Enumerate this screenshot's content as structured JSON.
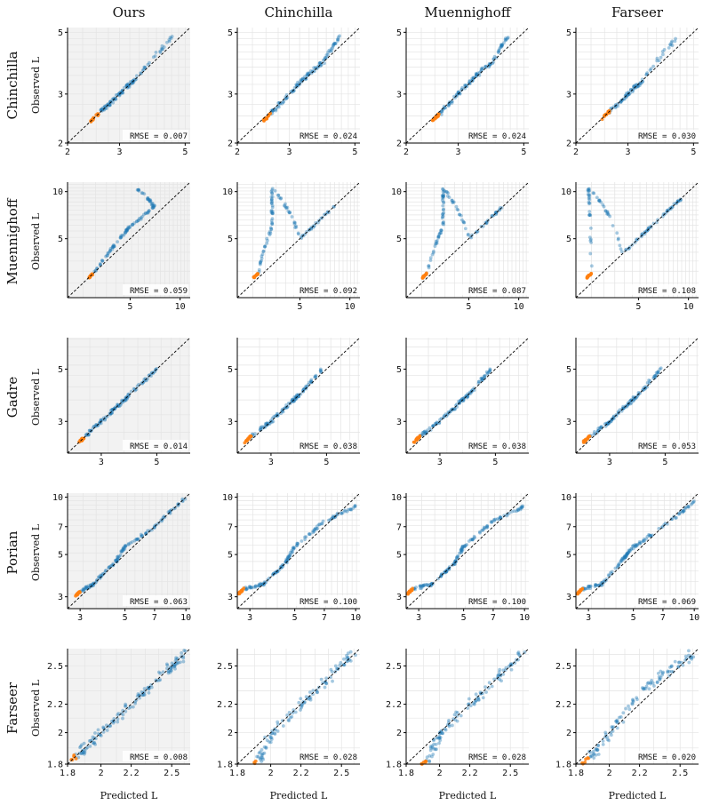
{
  "columns": [
    "Ours",
    "Chinchilla",
    "Muennighoff",
    "Farseer"
  ],
  "rows": [
    {
      "name": "Chinchilla",
      "min": 2,
      "max": 5.2,
      "log": true,
      "ticks": [
        2,
        3,
        5
      ],
      "tick_labels": [
        "2",
        "3",
        "5"
      ]
    },
    {
      "name": "Muennighoff",
      "min": 2.1,
      "max": 11.5,
      "log": true,
      "ticks": [
        5,
        10
      ],
      "tick_labels": [
        "5",
        "10"
      ]
    },
    {
      "name": "Gadre",
      "min": 2.2,
      "max": 6.8,
      "log": true,
      "ticks": [
        3,
        5
      ],
      "tick_labels": [
        "3",
        "5"
      ]
    },
    {
      "name": "Porian",
      "min": 2.6,
      "max": 10.5,
      "log": true,
      "ticks": [
        3,
        5,
        7,
        10
      ],
      "tick_labels": [
        "3",
        "5",
        "7",
        "10"
      ]
    },
    {
      "name": "Farseer",
      "min": 1.8,
      "max": 2.65,
      "log": true,
      "ticks": [
        1.8,
        2,
        2.2,
        2.5
      ],
      "tick_labels": [
        "1.8",
        "2",
        "2.2",
        "2.5"
      ]
    }
  ],
  "ylabel": "Observed L",
  "xlabel": "Predicted L",
  "rmse_prefix": "RMSE = ",
  "rmse": [
    [
      "0.007",
      "0.024",
      "0.024",
      "0.030"
    ],
    [
      "0.059",
      "0.092",
      "0.087",
      "0.108"
    ],
    [
      "0.014",
      "0.038",
      "0.038",
      "0.053"
    ],
    [
      "0.063",
      "0.100",
      "0.100",
      "0.069"
    ],
    [
      "0.008",
      "0.028",
      "0.028",
      "0.020"
    ]
  ],
  "colors": {
    "fit": "#1f77b4",
    "holdout": "#ff7f0e",
    "ours_bg": "#f2f2f2",
    "diag": "#000000"
  },
  "chart_data": {
    "type": "scatter",
    "title": "",
    "xlabel": "Predicted L",
    "ylabel": "Observed L",
    "xscale": "log",
    "yscale": "log",
    "grid": true,
    "reference_line": "y = x (dashed)",
    "series": [
      {
        "name": "",
        "color": "#1f77b4"
      },
      {
        "name": "",
        "color": "#ff7f0e"
      }
    ],
    "panels": [
      {
        "row": "Chinchilla",
        "col": "Ours",
        "rmse": 0.007,
        "points": [
          [
            2.55,
            2.55
          ],
          [
            2.8,
            2.8
          ],
          [
            3.1,
            3.1
          ],
          [
            3.4,
            3.4
          ],
          [
            4.5,
            4.8
          ]
        ]
      },
      {
        "row": "Chinchilla",
        "col": "Chinchilla",
        "rmse": 0.024,
        "points": [
          [
            2.6,
            2.55
          ],
          [
            3.0,
            3.0
          ],
          [
            3.4,
            3.45
          ],
          [
            3.9,
            3.9
          ],
          [
            4.4,
            4.8
          ]
        ]
      },
      {
        "row": "Chinchilla",
        "col": "Muennighoff",
        "rmse": 0.024,
        "points": [
          [
            2.6,
            2.55
          ],
          [
            3.0,
            3.0
          ],
          [
            3.4,
            3.45
          ],
          [
            3.9,
            3.9
          ],
          [
            4.4,
            4.8
          ]
        ]
      },
      {
        "row": "Chinchilla",
        "col": "Farseer",
        "rmse": 0.03,
        "points": [
          [
            2.6,
            2.6
          ],
          [
            3.0,
            3.0
          ],
          [
            3.3,
            3.3
          ],
          [
            4.4,
            4.8
          ]
        ]
      },
      {
        "row": "Muennighoff",
        "col": "Ours",
        "rmse": 0.059,
        "points": [
          [
            3,
            3
          ],
          [
            4,
            4.5
          ],
          [
            5,
            6
          ],
          [
            7,
            8
          ],
          [
            5.5,
            10.5
          ]
        ]
      },
      {
        "row": "Muennighoff",
        "col": "Chinchilla",
        "rmse": 0.092,
        "points": [
          [
            2.8,
            3
          ],
          [
            3.4,
            6
          ],
          [
            3.4,
            10.5
          ],
          [
            5,
            5
          ],
          [
            8,
            8
          ]
        ]
      },
      {
        "row": "Muennighoff",
        "col": "Muennighoff",
        "rmse": 0.087,
        "points": [
          [
            2.8,
            3
          ],
          [
            3.5,
            6
          ],
          [
            3.5,
            10.5
          ],
          [
            5,
            5
          ],
          [
            8,
            8
          ]
        ]
      },
      {
        "row": "Muennighoff",
        "col": "Farseer",
        "rmse": 0.108,
        "points": [
          [
            2.6,
            3
          ],
          [
            2.5,
            10.5
          ],
          [
            4,
            4
          ],
          [
            6,
            6
          ],
          [
            9,
            9
          ]
        ]
      },
      {
        "row": "Gadre",
        "col": "Ours",
        "rmse": 0.014,
        "points": [
          [
            2.6,
            2.6
          ],
          [
            3,
            3
          ],
          [
            3.5,
            3.5
          ],
          [
            4,
            4
          ],
          [
            5,
            5
          ]
        ]
      },
      {
        "row": "Gadre",
        "col": "Chinchilla",
        "rmse": 0.038,
        "points": [
          [
            2.5,
            2.6
          ],
          [
            3,
            3
          ],
          [
            3.6,
            3.6
          ],
          [
            4,
            4
          ],
          [
            4.8,
            5
          ]
        ]
      },
      {
        "row": "Gadre",
        "col": "Muennighoff",
        "rmse": 0.038,
        "points": [
          [
            2.5,
            2.6
          ],
          [
            3,
            3
          ],
          [
            3.6,
            3.6
          ],
          [
            4,
            4
          ],
          [
            4.8,
            5
          ]
        ]
      },
      {
        "row": "Gadre",
        "col": "Farseer",
        "rmse": 0.053,
        "points": [
          [
            2.5,
            2.6
          ],
          [
            3,
            3
          ],
          [
            3.5,
            3.5
          ],
          [
            4,
            4
          ],
          [
            4.8,
            5
          ]
        ]
      },
      {
        "row": "Porian",
        "col": "Ours",
        "rmse": 0.063,
        "points": [
          [
            3,
            3.2
          ],
          [
            3.5,
            3.5
          ],
          [
            4.5,
            4.6
          ],
          [
            5,
            5.5
          ],
          [
            7,
            7
          ],
          [
            10,
            10
          ]
        ]
      },
      {
        "row": "Porian",
        "col": "Chinchilla",
        "rmse": 0.1,
        "points": [
          [
            2.8,
            3.3
          ],
          [
            3.5,
            3.5
          ],
          [
            4.5,
            4.5
          ],
          [
            5,
            5.5
          ],
          [
            7,
            7.5
          ],
          [
            10,
            9
          ]
        ]
      },
      {
        "row": "Porian",
        "col": "Muennighoff",
        "rmse": 0.1,
        "points": [
          [
            2.8,
            3.3
          ],
          [
            3.5,
            3.5
          ],
          [
            4.5,
            4.5
          ],
          [
            5,
            5.5
          ],
          [
            7,
            7.5
          ],
          [
            10,
            9
          ]
        ]
      },
      {
        "row": "Porian",
        "col": "Farseer",
        "rmse": 0.069,
        "points": [
          [
            2.8,
            3.3
          ],
          [
            3.5,
            3.5
          ],
          [
            4.5,
            4.8
          ],
          [
            5,
            5.5
          ],
          [
            7,
            7
          ],
          [
            10,
            9.5
          ]
        ]
      },
      {
        "row": "Farseer",
        "col": "Ours",
        "rmse": 0.008,
        "points": [
          [
            1.85,
            1.85
          ],
          [
            1.95,
            1.95
          ],
          [
            2.1,
            2.1
          ],
          [
            2.3,
            2.3
          ],
          [
            2.5,
            2.5
          ],
          [
            2.6,
            2.6
          ]
        ]
      },
      {
        "row": "Farseer",
        "col": "Chinchilla",
        "rmse": 0.028,
        "points": [
          [
            1.92,
            1.82
          ],
          [
            2.0,
            1.98
          ],
          [
            2.2,
            2.2
          ],
          [
            2.4,
            2.4
          ],
          [
            2.6,
            2.6
          ]
        ]
      },
      {
        "row": "Farseer",
        "col": "Muennighoff",
        "rmse": 0.028,
        "points": [
          [
            1.92,
            1.82
          ],
          [
            2.0,
            1.98
          ],
          [
            2.2,
            2.2
          ],
          [
            2.4,
            2.4
          ],
          [
            2.6,
            2.6
          ]
        ]
      },
      {
        "row": "Farseer",
        "col": "Farseer",
        "rmse": 0.02,
        "points": [
          [
            1.88,
            1.84
          ],
          [
            2.0,
            1.98
          ],
          [
            2.2,
            2.3
          ],
          [
            2.4,
            2.45
          ],
          [
            2.6,
            2.6
          ]
        ]
      }
    ]
  }
}
